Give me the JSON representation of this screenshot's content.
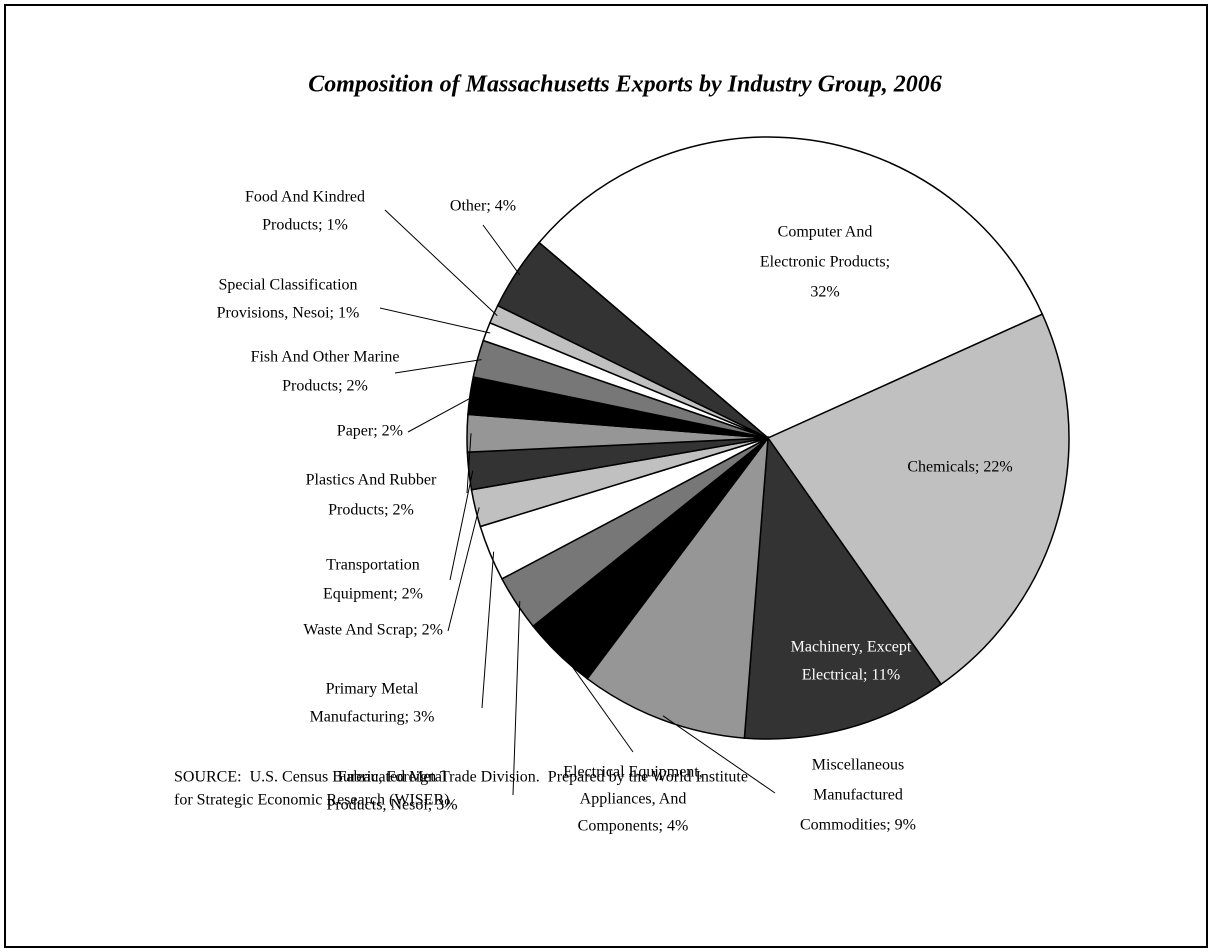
{
  "chart_data": {
    "type": "pie",
    "title": "Composition of Massachusetts Exports by Industry Group, 2006",
    "labels": [
      [
        "Computer And",
        "Electronic Products;",
        "32%"
      ],
      [
        "Chemicals; 22%"
      ],
      [
        "Machinery, Except",
        "Electrical; 11%"
      ],
      [
        "Miscellaneous",
        "Manufactured",
        "Commodities; 9%"
      ],
      [
        "Electrical Equipment,",
        "Appliances, And",
        "Components; 4%"
      ],
      [
        "Fabricated Metal",
        "Products, Nesoi; 3%"
      ],
      [
        "Primary Metal",
        "Manufacturing; 3%"
      ],
      [
        "Waste And Scrap; 2%"
      ],
      [
        "Transportation",
        "Equipment; 2%"
      ],
      [
        "Plastics And Rubber",
        "Products; 2%"
      ],
      [
        "Paper; 2%"
      ],
      [
        "Fish And Other Marine",
        "Products; 2%"
      ],
      [
        "Special Classification",
        "Provisions, Nesoi; 1%"
      ],
      [
        "Food And Kindred",
        "Products; 1%"
      ],
      [
        "Other; 4%"
      ]
    ],
    "values": [
      32,
      22,
      11,
      9,
      4,
      3,
      3,
      2,
      2,
      2,
      2,
      2,
      1,
      1,
      4
    ],
    "colors": [
      "#ffffff",
      "#c0c0c0",
      "#333333",
      "#969696",
      "#000000",
      "#777777",
      "#ffffff",
      "#c0c0c0",
      "#333333",
      "#969696",
      "#000000",
      "#777777",
      "#ffffff",
      "#c0c0c0",
      "#333333"
    ],
    "source": [
      "SOURCE:  U.S. Census Bureau, Foreign Trade Division.  Prepared by the World Institute",
      "for Strategic Economic Research (WISER)."
    ]
  }
}
